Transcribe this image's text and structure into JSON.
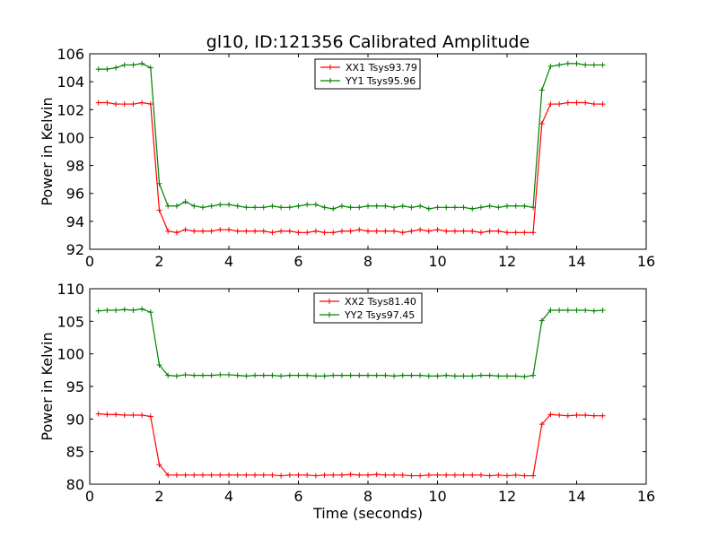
{
  "title": "gl10, ID:121356 Calibrated Amplitude",
  "chart_data": [
    {
      "type": "line",
      "title": "gl10, ID:121356 Calibrated Amplitude",
      "xlabel": "",
      "ylabel": "Power in Kelvin",
      "xlim": [
        0,
        16
      ],
      "ylim": [
        92,
        106
      ],
      "xticks": [
        "0",
        "2",
        "4",
        "6",
        "8",
        "10",
        "12",
        "14",
        "16"
      ],
      "yticks": [
        "92",
        "94",
        "96",
        "98",
        "100",
        "102",
        "104",
        "106"
      ],
      "grid": false,
      "legend_position": "top-center",
      "x": [
        0.25,
        0.5,
        0.75,
        1.0,
        1.25,
        1.5,
        1.75,
        2.0,
        2.25,
        2.5,
        2.75,
        3.0,
        3.25,
        3.5,
        3.75,
        4.0,
        4.25,
        4.5,
        4.75,
        5.0,
        5.25,
        5.5,
        5.75,
        6.0,
        6.25,
        6.5,
        6.75,
        7.0,
        7.25,
        7.5,
        7.75,
        8.0,
        8.25,
        8.5,
        8.75,
        9.0,
        9.25,
        9.5,
        9.75,
        10.0,
        10.25,
        10.5,
        10.75,
        11.0,
        11.25,
        11.5,
        11.75,
        12.0,
        12.25,
        12.5,
        12.75,
        13.0,
        13.25,
        13.5,
        13.75,
        14.0,
        14.25,
        14.5,
        14.75
      ],
      "series": [
        {
          "name": "XX1 Tsys93.79",
          "color": "#ff0000",
          "values": [
            102.5,
            102.5,
            102.4,
            102.4,
            102.4,
            102.5,
            102.4,
            94.8,
            93.3,
            93.2,
            93.4,
            93.3,
            93.3,
            93.3,
            93.4,
            93.4,
            93.3,
            93.3,
            93.3,
            93.3,
            93.2,
            93.3,
            93.3,
            93.2,
            93.2,
            93.3,
            93.2,
            93.2,
            93.3,
            93.3,
            93.4,
            93.3,
            93.3,
            93.3,
            93.3,
            93.2,
            93.3,
            93.4,
            93.3,
            93.4,
            93.3,
            93.3,
            93.3,
            93.3,
            93.2,
            93.3,
            93.3,
            93.2,
            93.2,
            93.2,
            93.2,
            101.0,
            102.4,
            102.4,
            102.5,
            102.5,
            102.5,
            102.4,
            102.4
          ]
        },
        {
          "name": "YY1 Tsys95.96",
          "color": "#008000",
          "values": [
            104.9,
            104.9,
            105.0,
            105.2,
            105.2,
            105.3,
            105.0,
            96.7,
            95.1,
            95.1,
            95.4,
            95.1,
            95.0,
            95.1,
            95.2,
            95.2,
            95.1,
            95.0,
            95.0,
            95.0,
            95.1,
            95.0,
            95.0,
            95.1,
            95.2,
            95.2,
            95.0,
            94.9,
            95.1,
            95.0,
            95.0,
            95.1,
            95.1,
            95.1,
            95.0,
            95.1,
            95.0,
            95.1,
            94.9,
            95.0,
            95.0,
            95.0,
            95.0,
            94.9,
            95.0,
            95.1,
            95.0,
            95.1,
            95.1,
            95.1,
            95.0,
            103.4,
            105.1,
            105.2,
            105.3,
            105.3,
            105.2,
            105.2,
            105.2
          ]
        }
      ]
    },
    {
      "type": "line",
      "title": "",
      "xlabel": "Time (seconds)",
      "ylabel": "Power in Kelvin",
      "xlim": [
        0,
        16
      ],
      "ylim": [
        80,
        110
      ],
      "xticks": [
        "0",
        "2",
        "4",
        "6",
        "8",
        "10",
        "12",
        "14",
        "16"
      ],
      "yticks": [
        "80",
        "85",
        "90",
        "95",
        "100",
        "105",
        "110"
      ],
      "grid": false,
      "legend_position": "top-center",
      "x": [
        0.25,
        0.5,
        0.75,
        1.0,
        1.25,
        1.5,
        1.75,
        2.0,
        2.25,
        2.5,
        2.75,
        3.0,
        3.25,
        3.5,
        3.75,
        4.0,
        4.25,
        4.5,
        4.75,
        5.0,
        5.25,
        5.5,
        5.75,
        6.0,
        6.25,
        6.5,
        6.75,
        7.0,
        7.25,
        7.5,
        7.75,
        8.0,
        8.25,
        8.5,
        8.75,
        9.0,
        9.25,
        9.5,
        9.75,
        10.0,
        10.25,
        10.5,
        10.75,
        11.0,
        11.25,
        11.5,
        11.75,
        12.0,
        12.25,
        12.5,
        12.75,
        13.0,
        13.25,
        13.5,
        13.75,
        14.0,
        14.25,
        14.5,
        14.75
      ],
      "series": [
        {
          "name": "XX2 Tsys81.40",
          "color": "#ff0000",
          "values": [
            90.8,
            90.7,
            90.7,
            90.6,
            90.6,
            90.6,
            90.4,
            83.0,
            81.4,
            81.4,
            81.4,
            81.4,
            81.4,
            81.4,
            81.4,
            81.4,
            81.4,
            81.4,
            81.4,
            81.4,
            81.4,
            81.3,
            81.4,
            81.4,
            81.4,
            81.3,
            81.4,
            81.4,
            81.4,
            81.5,
            81.4,
            81.4,
            81.5,
            81.4,
            81.4,
            81.4,
            81.3,
            81.3,
            81.4,
            81.4,
            81.4,
            81.4,
            81.4,
            81.4,
            81.4,
            81.3,
            81.4,
            81.3,
            81.4,
            81.3,
            81.3,
            89.2,
            90.7,
            90.6,
            90.5,
            90.6,
            90.6,
            90.5,
            90.5
          ]
        },
        {
          "name": "YY2 Tsys97.45",
          "color": "#008000",
          "values": [
            106.6,
            106.7,
            106.7,
            106.8,
            106.7,
            106.9,
            106.4,
            98.3,
            96.7,
            96.6,
            96.8,
            96.7,
            96.7,
            96.7,
            96.8,
            96.8,
            96.7,
            96.6,
            96.7,
            96.7,
            96.7,
            96.6,
            96.7,
            96.7,
            96.7,
            96.6,
            96.6,
            96.7,
            96.7,
            96.7,
            96.7,
            96.7,
            96.7,
            96.7,
            96.6,
            96.7,
            96.7,
            96.7,
            96.6,
            96.6,
            96.7,
            96.6,
            96.6,
            96.6,
            96.7,
            96.7,
            96.6,
            96.6,
            96.6,
            96.5,
            96.7,
            105.1,
            106.7,
            106.7,
            106.7,
            106.7,
            106.7,
            106.6,
            106.7
          ]
        }
      ]
    }
  ]
}
